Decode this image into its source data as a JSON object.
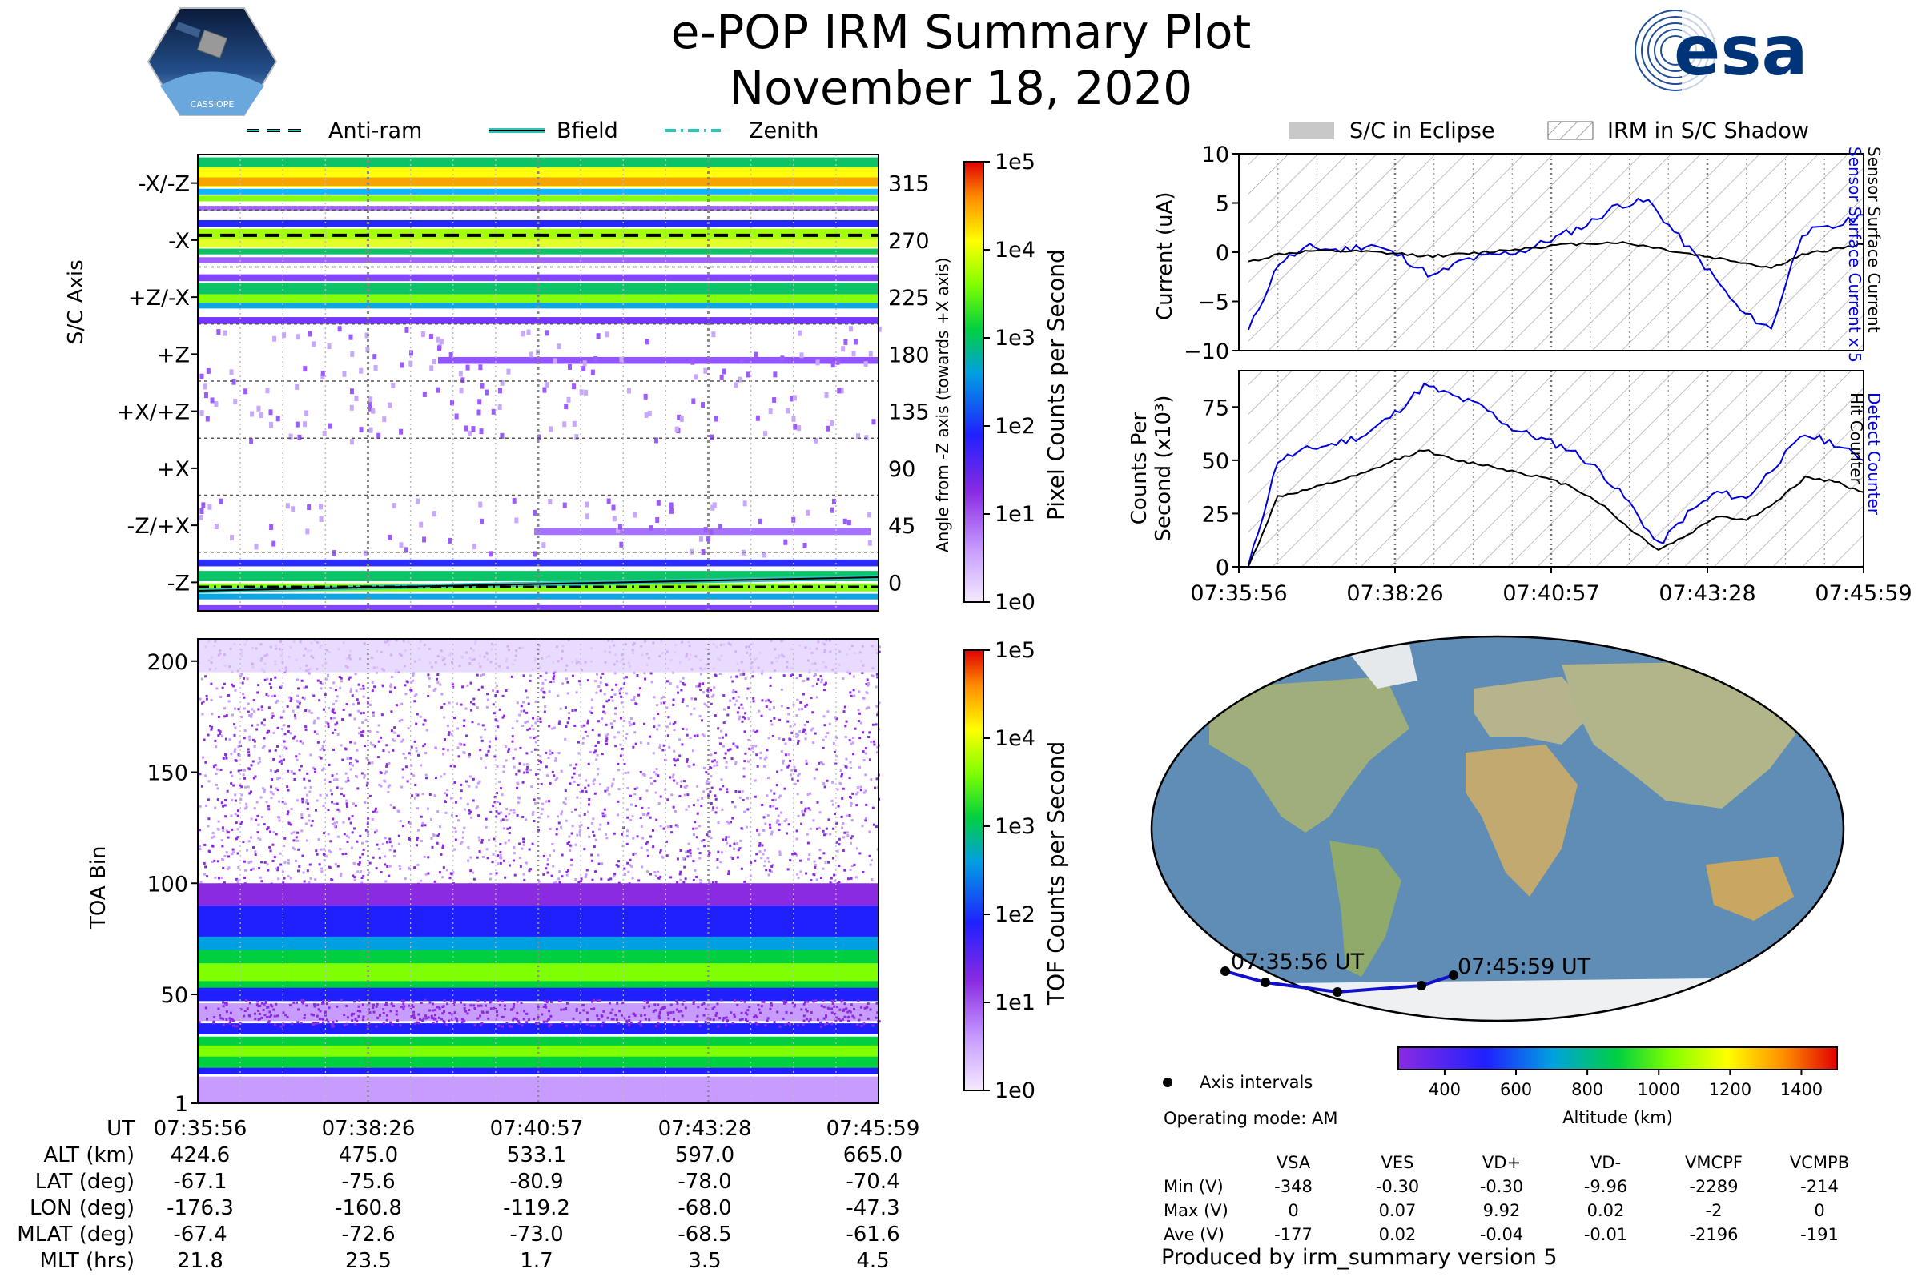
{
  "header": {
    "title": "e-POP IRM Summary Plot",
    "date": "November 18, 2020",
    "logo_text": "CASSIOPE",
    "esa_text": "esa"
  },
  "legend_top": {
    "items": [
      "Anti-ram",
      "Bfield",
      "Zenith"
    ],
    "right_items": [
      "S/C in Eclipse",
      "IRM in S/C Shadow"
    ]
  },
  "colors": {
    "anti_ram": "#000000",
    "bfield": "#2ec4b6",
    "zenith": "#2ec4b6",
    "series_blue": "#0000dd",
    "series_black": "#000000"
  },
  "chart_data": [
    {
      "id": "sc-axis",
      "type": "heatmap",
      "ylabel": "S/C Axis",
      "ylabel_right": "Angle from -Z axis (towards +X axis)",
      "y_categories": [
        "-X/-Z",
        "-X",
        "+Z/-X",
        "+Z",
        "+X/+Z",
        "+X",
        "-Z/+X",
        "-Z"
      ],
      "y_angles": [
        "315",
        "270",
        "225",
        "180",
        "135",
        "90",
        "45",
        "0"
      ],
      "colorbar_label": "Pixel Counts per Second",
      "colorbar_ticks": [
        "1e5",
        "1e4",
        "1e3",
        "1e2",
        "1e1",
        "1e0"
      ]
    },
    {
      "id": "toa",
      "type": "heatmap",
      "ylabel": "TOA Bin",
      "y_ticks": [
        "200",
        "150",
        "100",
        "50",
        "1"
      ],
      "ylim": [
        1,
        210
      ],
      "colorbar_label": "TOF Counts per Second",
      "colorbar_ticks": [
        "1e5",
        "1e4",
        "1e3",
        "1e2",
        "1e1",
        "1e0"
      ]
    },
    {
      "id": "current",
      "type": "line",
      "ylabel": "Current (uA)",
      "right_label_blue": "Sensor Surface Current x 5",
      "right_label_black": "Sensor Surface Current",
      "ylim": [
        -10,
        10
      ],
      "y_ticks": [
        "10",
        "5",
        "0",
        "−5",
        "−10"
      ],
      "series": [
        {
          "name": "Sensor Surface Current x 5",
          "values": [
            -8,
            -1,
            0.5,
            0.2,
            0.8,
            -0.5,
            -2.5,
            -0.8,
            -0.3,
            0.2,
            1.5,
            2.8,
            4.8,
            5.2,
            1.5,
            -2,
            -6,
            -7.8,
            2,
            2.5,
            3.8
          ]
        },
        {
          "name": "Sensor Surface Current",
          "values": [
            -1,
            -0.2,
            0.1,
            0.1,
            0,
            -0.2,
            -0.4,
            -0.2,
            0.1,
            0.4,
            0.7,
            0.9,
            1,
            0.6,
            0,
            -0.5,
            -1,
            -1.6,
            -0.3,
            0.3,
            0.8
          ]
        }
      ]
    },
    {
      "id": "counts",
      "type": "line",
      "ylabel": "Counts Per Second (x10³)",
      "right_label_blue": "Detect Counter",
      "right_label_black": "Hit Counter",
      "ylim": [
        0,
        92
      ],
      "y_ticks": [
        "75",
        "50",
        "25",
        "0"
      ],
      "series": [
        {
          "name": "Detect Counter",
          "values": [
            0,
            50,
            55,
            58,
            62,
            72,
            85,
            80,
            75,
            65,
            60,
            55,
            45,
            30,
            10,
            25,
            35,
            32,
            48,
            62,
            58,
            50
          ]
        },
        {
          "name": "Hit Counter",
          "values": [
            0,
            33,
            36,
            40,
            44,
            50,
            55,
            50,
            48,
            45,
            42,
            38,
            30,
            18,
            8,
            15,
            24,
            22,
            30,
            42,
            40,
            35
          ]
        }
      ],
      "x_ticks": [
        "07:35:56",
        "07:38:26",
        "07:40:57",
        "07:43:28",
        "07:45:59"
      ]
    },
    {
      "id": "map",
      "type": "scatter",
      "labels": [
        "07:35:56 UT",
        "07:45:59 UT"
      ],
      "track_lon": [
        -176.3,
        -160.8,
        -119.2,
        -68.0,
        -47.3
      ],
      "track_lat": [
        -67.1,
        -75.6,
        -80.9,
        -78.0,
        -70.4
      ],
      "colorbar_label": "Altitude (km)",
      "colorbar_ticks": [
        "400",
        "600",
        "800",
        "1000",
        "1200",
        "1400"
      ]
    }
  ],
  "footer": {
    "row_labels": [
      "UT",
      "ALT (km)",
      "LAT (deg)",
      "LON (deg)",
      "MLAT (deg)",
      "MLT (hrs)"
    ],
    "columns": [
      [
        "07:35:56",
        "424.6",
        "-67.1",
        "-176.3",
        "-67.4",
        "21.8"
      ],
      [
        "07:38:26",
        "475.0",
        "-75.6",
        "-160.8",
        "-72.6",
        "23.5"
      ],
      [
        "07:40:57",
        "533.1",
        "-80.9",
        "-119.2",
        "-73.0",
        "1.7"
      ],
      [
        "07:43:28",
        "597.0",
        "-78.0",
        "-68.0",
        "-68.5",
        "3.5"
      ],
      [
        "07:45:59",
        "665.0",
        "-70.4",
        "-47.3",
        "-61.6",
        "4.5"
      ]
    ]
  },
  "info": {
    "axis_intervals": "Axis intervals",
    "operating_mode": "Operating mode: AM",
    "table_headers": [
      "VSA",
      "VES",
      "VD+",
      "VD-",
      "VMCPF",
      "VCMPB"
    ],
    "table_rows": [
      {
        "label": "Min (V)",
        "values": [
          "-348",
          "-0.30",
          "-0.30",
          "-9.96",
          "-2289",
          "-214"
        ]
      },
      {
        "label": "Max (V)",
        "values": [
          "0",
          "0.07",
          "9.92",
          "0.02",
          "-2",
          "0"
        ]
      },
      {
        "label": "Ave (V)",
        "values": [
          "-177",
          "0.02",
          "-0.04",
          "-0.01",
          "-2196",
          "-191"
        ]
      }
    ],
    "produced_by": "Produced by irm_summary version 5"
  }
}
